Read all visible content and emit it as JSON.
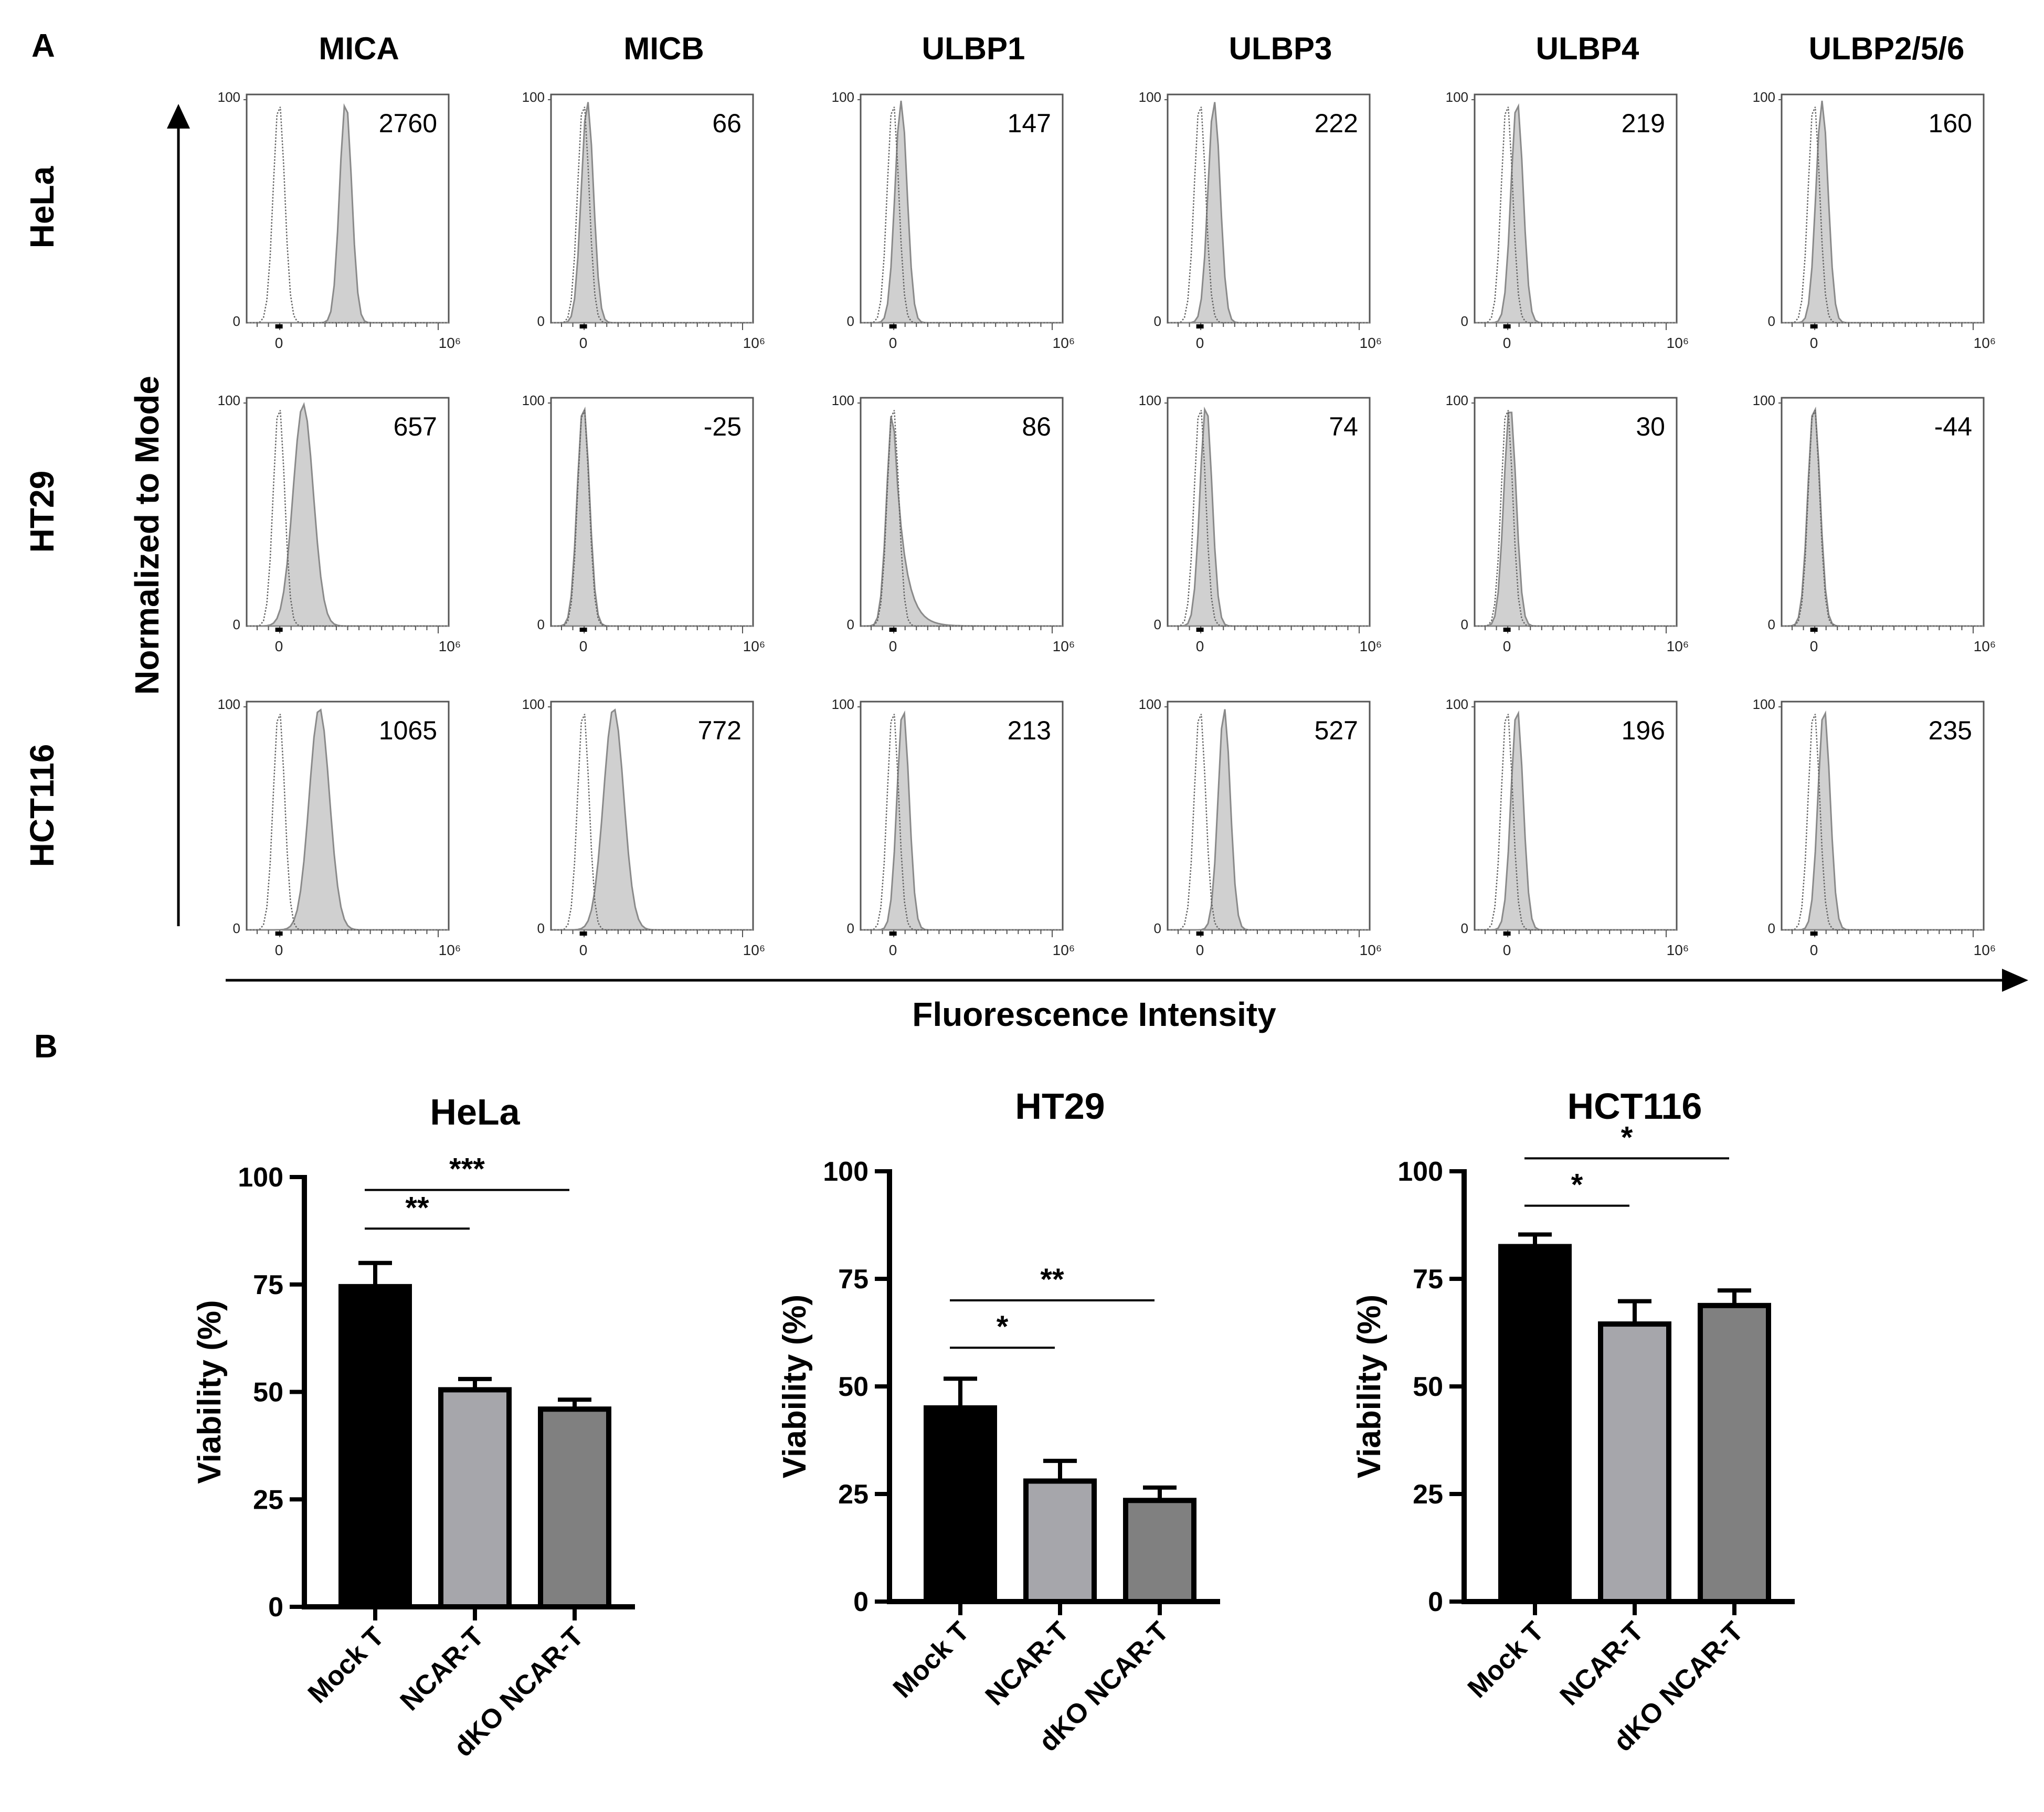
{
  "panel_a": {
    "letter": "A",
    "markers": [
      "MICA",
      "MICB",
      "ULBP1",
      "ULBP3",
      "ULBP4",
      "ULBP2/5/6"
    ],
    "cell_lines": [
      "HeLa",
      "HT29",
      "HCT116"
    ],
    "y_axis_title": "Normalized to Mode",
    "x_axis_title": "Fluorescence Intensity",
    "hist_y_ticks": [
      "0",
      "100"
    ],
    "hist_x_ticks": [
      "0",
      "10⁶"
    ],
    "mfi": [
      [
        "2760",
        "66",
        "147",
        "222",
        "219",
        "160"
      ],
      [
        "657",
        "-25",
        "86",
        "74",
        "30",
        "-44"
      ],
      [
        "1065",
        "772",
        "213",
        "527",
        "196",
        "235"
      ]
    ],
    "stained_peak_shift": [
      [
        0.33,
        0.02,
        0.04,
        0.07,
        0.05,
        0.04
      ],
      [
        0.12,
        0.0,
        0.0,
        0.03,
        0.015,
        0.0
      ],
      [
        0.2,
        0.15,
        0.05,
        0.12,
        0.05,
        0.05
      ]
    ]
  },
  "panel_b": {
    "letter": "B",
    "colors": {
      "Mock T": "#000000",
      "NCAR-T": "#a6a6ab",
      "dKO NCAR-T": "#808080"
    },
    "chart_data": [
      {
        "type": "bar",
        "title": "HeLa",
        "ylabel": "Viability (%)",
        "ylim": [
          0,
          100
        ],
        "yticks": [
          0,
          25,
          50,
          75,
          100
        ],
        "categories": [
          "Mock T",
          "NCAR-T",
          "dKO NCAR-T"
        ],
        "values": [
          74.5,
          50.5,
          46
        ],
        "errors": [
          5.5,
          2.5,
          2.2
        ],
        "significance": [
          {
            "from": 0,
            "to": 1,
            "label": "**",
            "y": 88
          },
          {
            "from": 0,
            "to": 2,
            "label": "***",
            "y": 97
          }
        ]
      },
      {
        "type": "bar",
        "title": "HT29",
        "ylabel": "Viability (%)",
        "ylim": [
          0,
          100
        ],
        "yticks": [
          0,
          25,
          50,
          75,
          100
        ],
        "categories": [
          "Mock T",
          "NCAR-T",
          "dKO NCAR-T"
        ],
        "values": [
          45,
          28,
          23.5
        ],
        "errors": [
          6.8,
          4.7,
          3
        ],
        "significance": [
          {
            "from": 0,
            "to": 1,
            "label": "*",
            "y": 59
          },
          {
            "from": 0,
            "to": 2,
            "label": "**",
            "y": 70
          }
        ]
      },
      {
        "type": "bar",
        "title": "HCT116",
        "ylabel": "Viability (%)",
        "ylim": [
          0,
          100
        ],
        "yticks": [
          0,
          25,
          50,
          75,
          100
        ],
        "categories": [
          "Mock T",
          "NCAR-T",
          "dKO NCAR-T"
        ],
        "values": [
          82.5,
          64.5,
          68.8
        ],
        "errors": [
          2.8,
          5.3,
          3.5
        ],
        "significance": [
          {
            "from": 0,
            "to": 1,
            "label": "*",
            "y": 92
          },
          {
            "from": 0,
            "to": 2,
            "label": "*",
            "y": 103
          }
        ]
      }
    ]
  }
}
